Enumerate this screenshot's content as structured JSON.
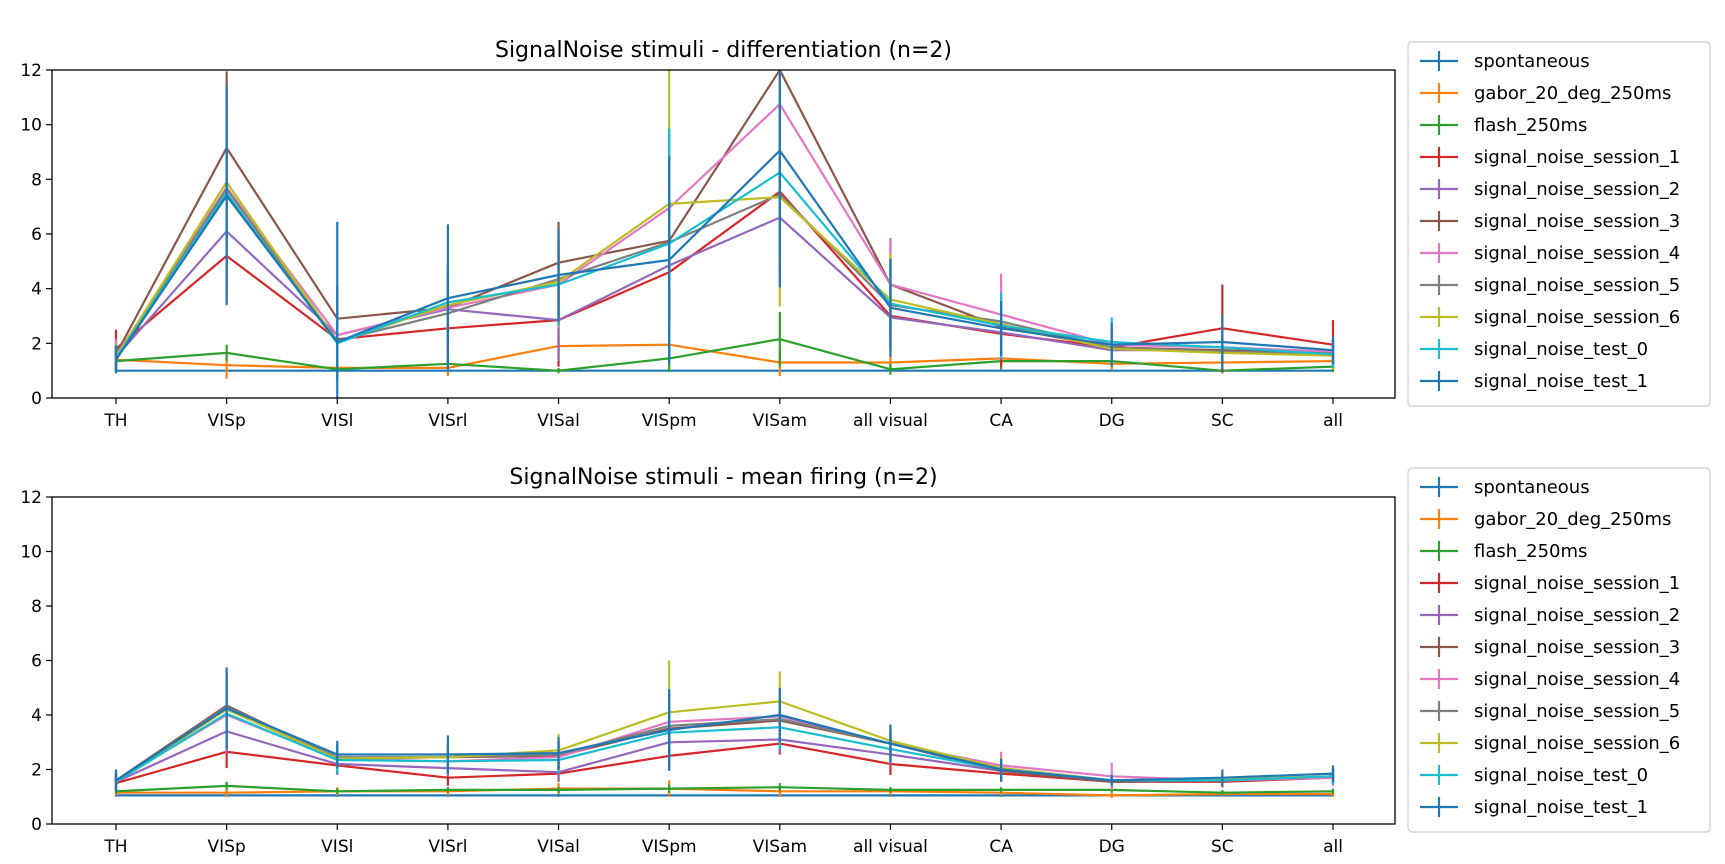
{
  "chart_data": [
    {
      "type": "line",
      "title": "SignalNoise stimuli - differentiation (n=2)",
      "xlabel": "",
      "ylabel": "",
      "ylim": [
        0,
        12
      ],
      "yticks": [
        0,
        2,
        4,
        6,
        8,
        10,
        12
      ],
      "grid": false,
      "legend": "outside-right",
      "categories": [
        "TH",
        "VISp",
        "VISl",
        "VISrl",
        "VISal",
        "VISpm",
        "VISam",
        "all visual",
        "CA",
        "DG",
        "SC",
        "all"
      ],
      "series": [
        {
          "name": "spontaneous",
          "color": "#1f77b4",
          "values": [
            1.0,
            1.0,
            1.0,
            1.0,
            1.0,
            1.0,
            1.0,
            1.0,
            1.0,
            1.0,
            1.0,
            1.0
          ],
          "errors": [
            0,
            0,
            0,
            0,
            0,
            0,
            0,
            0,
            0,
            0,
            0,
            0
          ]
        },
        {
          "name": "gabor_20_deg_250ms",
          "color": "#ff7f0e",
          "values": [
            1.4,
            1.2,
            1.1,
            1.1,
            1.9,
            1.95,
            1.3,
            1.3,
            1.45,
            1.25,
            1.3,
            1.35
          ],
          "errors": [
            0.4,
            0.5,
            0.2,
            0.3,
            0.3,
            0.4,
            0.5,
            0.3,
            0.4,
            0.2,
            0.3,
            0.4
          ]
        },
        {
          "name": "flash_250ms",
          "color": "#2ca02c",
          "values": [
            1.35,
            1.65,
            1.05,
            1.25,
            1.0,
            1.45,
            2.15,
            1.05,
            1.35,
            1.35,
            1.0,
            1.15
          ],
          "errors": [
            0.3,
            0.3,
            0.4,
            0.2,
            0.1,
            0.5,
            1.0,
            0.2,
            0.3,
            0.2,
            0.1,
            0.2
          ]
        },
        {
          "name": "signal_noise_session_1",
          "color": "#d62728",
          "values": [
            1.8,
            5.2,
            2.15,
            2.55,
            2.85,
            4.6,
            7.55,
            3.0,
            2.35,
            1.85,
            2.55,
            1.95
          ],
          "errors": [
            0.7,
            1.7,
            0.6,
            1.2,
            1.7,
            2.2,
            2.0,
            1.2,
            1.2,
            0.5,
            1.6,
            0.9
          ]
        },
        {
          "name": "signal_noise_session_2",
          "color": "#9467bd",
          "values": [
            1.5,
            6.1,
            2.3,
            3.25,
            2.85,
            4.85,
            6.6,
            2.95,
            2.4,
            1.75,
            1.75,
            1.6
          ],
          "errors": [
            0.5,
            2.0,
            0.7,
            1.3,
            1.5,
            2.5,
            2.2,
            1.2,
            1.0,
            0.4,
            0.6,
            0.5
          ]
        },
        {
          "name": "signal_noise_session_3",
          "color": "#8c564b",
          "values": [
            1.6,
            9.15,
            2.9,
            3.3,
            4.95,
            5.75,
            12.0,
            4.15,
            2.6,
            1.85,
            1.75,
            1.65
          ],
          "errors": [
            0.6,
            2.8,
            1.2,
            1.5,
            1.5,
            3.0,
            1.5,
            1.7,
            1.0,
            0.5,
            0.7,
            0.5
          ]
        },
        {
          "name": "signal_noise_session_4",
          "color": "#e377c2",
          "values": [
            1.55,
            7.7,
            2.3,
            3.3,
            4.15,
            6.95,
            10.75,
            4.15,
            3.05,
            1.95,
            1.85,
            1.7
          ],
          "errors": [
            0.6,
            2.8,
            0.8,
            1.5,
            1.6,
            3.0,
            2.0,
            1.7,
            1.5,
            0.5,
            0.7,
            0.5
          ]
        },
        {
          "name": "signal_noise_session_5",
          "color": "#7f7f7f",
          "values": [
            1.45,
            7.65,
            2.1,
            3.1,
            4.35,
            5.7,
            7.45,
            3.4,
            2.8,
            1.85,
            1.7,
            1.6
          ],
          "errors": [
            0.5,
            2.5,
            0.7,
            1.4,
            1.5,
            3.0,
            2.5,
            1.3,
            1.0,
            0.5,
            0.6,
            0.5
          ]
        },
        {
          "name": "signal_noise_session_6",
          "color": "#bcbd22",
          "values": [
            1.5,
            7.9,
            2.05,
            3.4,
            4.25,
            7.1,
            7.35,
            3.6,
            2.7,
            1.8,
            1.65,
            1.55
          ],
          "errors": [
            0.5,
            2.7,
            0.7,
            1.4,
            1.6,
            5.0,
            4.0,
            1.7,
            1.0,
            0.5,
            0.6,
            0.5
          ]
        },
        {
          "name": "signal_noise_test_0",
          "color": "#17becf",
          "values": [
            1.45,
            7.5,
            2.0,
            3.5,
            4.15,
            5.65,
            8.25,
            3.45,
            2.65,
            2.05,
            1.85,
            1.6
          ],
          "errors": [
            0.5,
            2.5,
            0.6,
            1.5,
            1.5,
            4.2,
            3.0,
            1.5,
            1.2,
            0.9,
            0.8,
            0.5
          ]
        },
        {
          "name": "signal_noise_test_1",
          "color": "#1f77b4",
          "values": [
            1.4,
            7.4,
            2.05,
            3.65,
            4.5,
            5.05,
            9.05,
            3.3,
            2.55,
            1.95,
            2.05,
            1.75
          ],
          "errors": [
            0.5,
            4.0,
            4.4,
            2.7,
            1.7,
            3.8,
            5.0,
            1.8,
            1.0,
            0.8,
            1.0,
            0.5
          ]
        }
      ]
    },
    {
      "type": "line",
      "title": "SignalNoise stimuli - mean firing (n=2)",
      "xlabel": "",
      "ylabel": "",
      "ylim": [
        0,
        12
      ],
      "yticks": [
        0,
        2,
        4,
        6,
        8,
        10,
        12
      ],
      "grid": false,
      "legend": "outside-right",
      "categories": [
        "TH",
        "VISp",
        "VISl",
        "VISrl",
        "VISal",
        "VISpm",
        "VISam",
        "all visual",
        "CA",
        "DG",
        "SC",
        "all"
      ],
      "series": [
        {
          "name": "spontaneous",
          "color": "#1f77b4",
          "values": [
            1.05,
            1.05,
            1.05,
            1.05,
            1.05,
            1.05,
            1.05,
            1.05,
            1.05,
            1.05,
            1.05,
            1.05
          ],
          "errors": [
            0.05,
            0.05,
            0.05,
            0.05,
            0.05,
            0.05,
            0.05,
            0.05,
            0.05,
            0.05,
            0.05,
            0.05
          ]
        },
        {
          "name": "gabor_20_deg_250ms",
          "color": "#ff7f0e",
          "values": [
            1.15,
            1.15,
            1.2,
            1.2,
            1.3,
            1.3,
            1.2,
            1.2,
            1.15,
            1.05,
            1.1,
            1.1
          ],
          "errors": [
            0.1,
            0.15,
            0.15,
            0.15,
            0.2,
            0.3,
            0.2,
            0.15,
            0.1,
            0.1,
            0.1,
            0.1
          ]
        },
        {
          "name": "flash_250ms",
          "color": "#2ca02c",
          "values": [
            1.2,
            1.4,
            1.2,
            1.25,
            1.25,
            1.3,
            1.35,
            1.25,
            1.25,
            1.25,
            1.15,
            1.2
          ],
          "errors": [
            0.1,
            0.15,
            0.1,
            0.1,
            0.1,
            0.15,
            0.15,
            0.1,
            0.1,
            0.1,
            0.1,
            0.1
          ]
        },
        {
          "name": "signal_noise_session_1",
          "color": "#d62728",
          "values": [
            1.5,
            2.65,
            2.15,
            1.7,
            1.85,
            2.5,
            2.95,
            2.2,
            1.85,
            1.55,
            1.55,
            1.7
          ],
          "errors": [
            0.3,
            0.6,
            0.3,
            0.3,
            0.3,
            0.5,
            0.4,
            0.4,
            0.3,
            0.2,
            0.2,
            0.2
          ]
        },
        {
          "name": "signal_noise_session_2",
          "color": "#9467bd",
          "values": [
            1.55,
            3.4,
            2.2,
            2.05,
            1.9,
            3.0,
            3.1,
            2.55,
            1.95,
            1.55,
            1.6,
            1.7
          ],
          "errors": [
            0.3,
            0.8,
            0.4,
            0.3,
            0.3,
            0.6,
            0.5,
            0.4,
            0.3,
            0.2,
            0.2,
            0.2
          ]
        },
        {
          "name": "signal_noise_session_3",
          "color": "#8c564b",
          "values": [
            1.6,
            4.35,
            2.4,
            2.45,
            2.5,
            3.5,
            3.8,
            2.95,
            1.95,
            1.55,
            1.6,
            1.75
          ],
          "errors": [
            0.3,
            1.2,
            0.5,
            0.5,
            0.5,
            0.8,
            0.7,
            0.5,
            0.4,
            0.2,
            0.2,
            0.3
          ]
        },
        {
          "name": "signal_noise_session_4",
          "color": "#e377c2",
          "values": [
            1.6,
            4.0,
            2.4,
            2.3,
            2.45,
            3.75,
            3.95,
            2.95,
            2.15,
            1.75,
            1.6,
            1.7
          ],
          "errors": [
            0.3,
            1.0,
            0.5,
            0.4,
            0.5,
            0.9,
            0.8,
            0.5,
            0.5,
            0.5,
            0.2,
            0.3
          ]
        },
        {
          "name": "signal_noise_session_5",
          "color": "#7f7f7f",
          "values": [
            1.55,
            4.3,
            2.45,
            2.45,
            2.55,
            3.6,
            3.85,
            2.95,
            2.05,
            1.6,
            1.6,
            1.75
          ],
          "errors": [
            0.3,
            1.1,
            0.5,
            0.5,
            0.5,
            0.9,
            0.8,
            0.5,
            0.4,
            0.2,
            0.2,
            0.3
          ]
        },
        {
          "name": "signal_noise_session_6",
          "color": "#bcbd22",
          "values": [
            1.55,
            4.2,
            2.4,
            2.45,
            2.7,
            4.1,
            4.5,
            3.05,
            2.05,
            1.6,
            1.65,
            1.75
          ],
          "errors": [
            0.3,
            1.2,
            0.5,
            0.5,
            0.6,
            1.9,
            1.1,
            0.6,
            0.4,
            0.2,
            0.2,
            0.3
          ]
        },
        {
          "name": "signal_noise_test_0",
          "color": "#17becf",
          "values": [
            1.55,
            4.05,
            2.35,
            2.3,
            2.35,
            3.35,
            3.55,
            2.75,
            2.0,
            1.6,
            1.6,
            1.75
          ],
          "errors": [
            0.3,
            1.0,
            0.5,
            0.4,
            0.5,
            1.0,
            0.8,
            0.5,
            0.4,
            0.2,
            0.2,
            0.3
          ]
        },
        {
          "name": "signal_noise_test_1",
          "color": "#1f77b4",
          "values": [
            1.6,
            4.25,
            2.55,
            2.55,
            2.6,
            3.45,
            4.0,
            2.95,
            2.0,
            1.6,
            1.7,
            1.85
          ],
          "errors": [
            0.4,
            1.5,
            0.5,
            0.7,
            0.6,
            1.5,
            1.0,
            0.7,
            0.4,
            0.2,
            0.3,
            0.3
          ]
        }
      ]
    }
  ]
}
